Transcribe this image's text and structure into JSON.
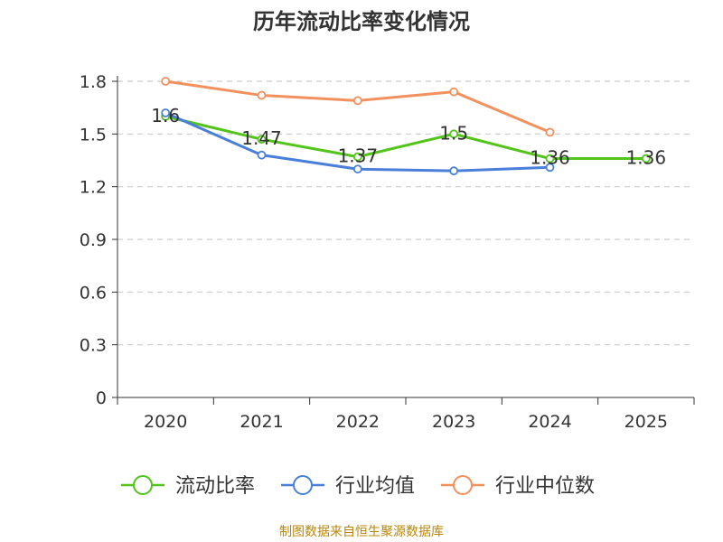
{
  "chart_data": {
    "type": "line",
    "title": "历年流动比率变化情况",
    "categories": [
      "2020",
      "2021",
      "2022",
      "2023",
      "2024",
      "2025"
    ],
    "y_ticks": [
      "0",
      "0.3",
      "0.6",
      "0.9",
      "1.2",
      "1.5",
      "1.8"
    ],
    "ylim": [
      0,
      1.8
    ],
    "grid": true,
    "legend_position": "bottom",
    "series": [
      {
        "name": "流动比率",
        "color": "#52c41a",
        "values": [
          1.6,
          1.47,
          1.37,
          1.5,
          1.36,
          1.36
        ],
        "labels": [
          "1.6",
          "1.47",
          "1.37",
          "1.5",
          "1.36",
          "1.36"
        ]
      },
      {
        "name": "行业均值",
        "color": "#4a7fd9",
        "values": [
          1.62,
          1.38,
          1.3,
          1.29,
          1.31,
          null
        ]
      },
      {
        "name": "行业中位数",
        "color": "#f4905e",
        "values": [
          1.8,
          1.72,
          1.69,
          1.74,
          1.51,
          null
        ]
      }
    ]
  },
  "footer": {
    "source": "制图数据来自恒生聚源数据库"
  }
}
